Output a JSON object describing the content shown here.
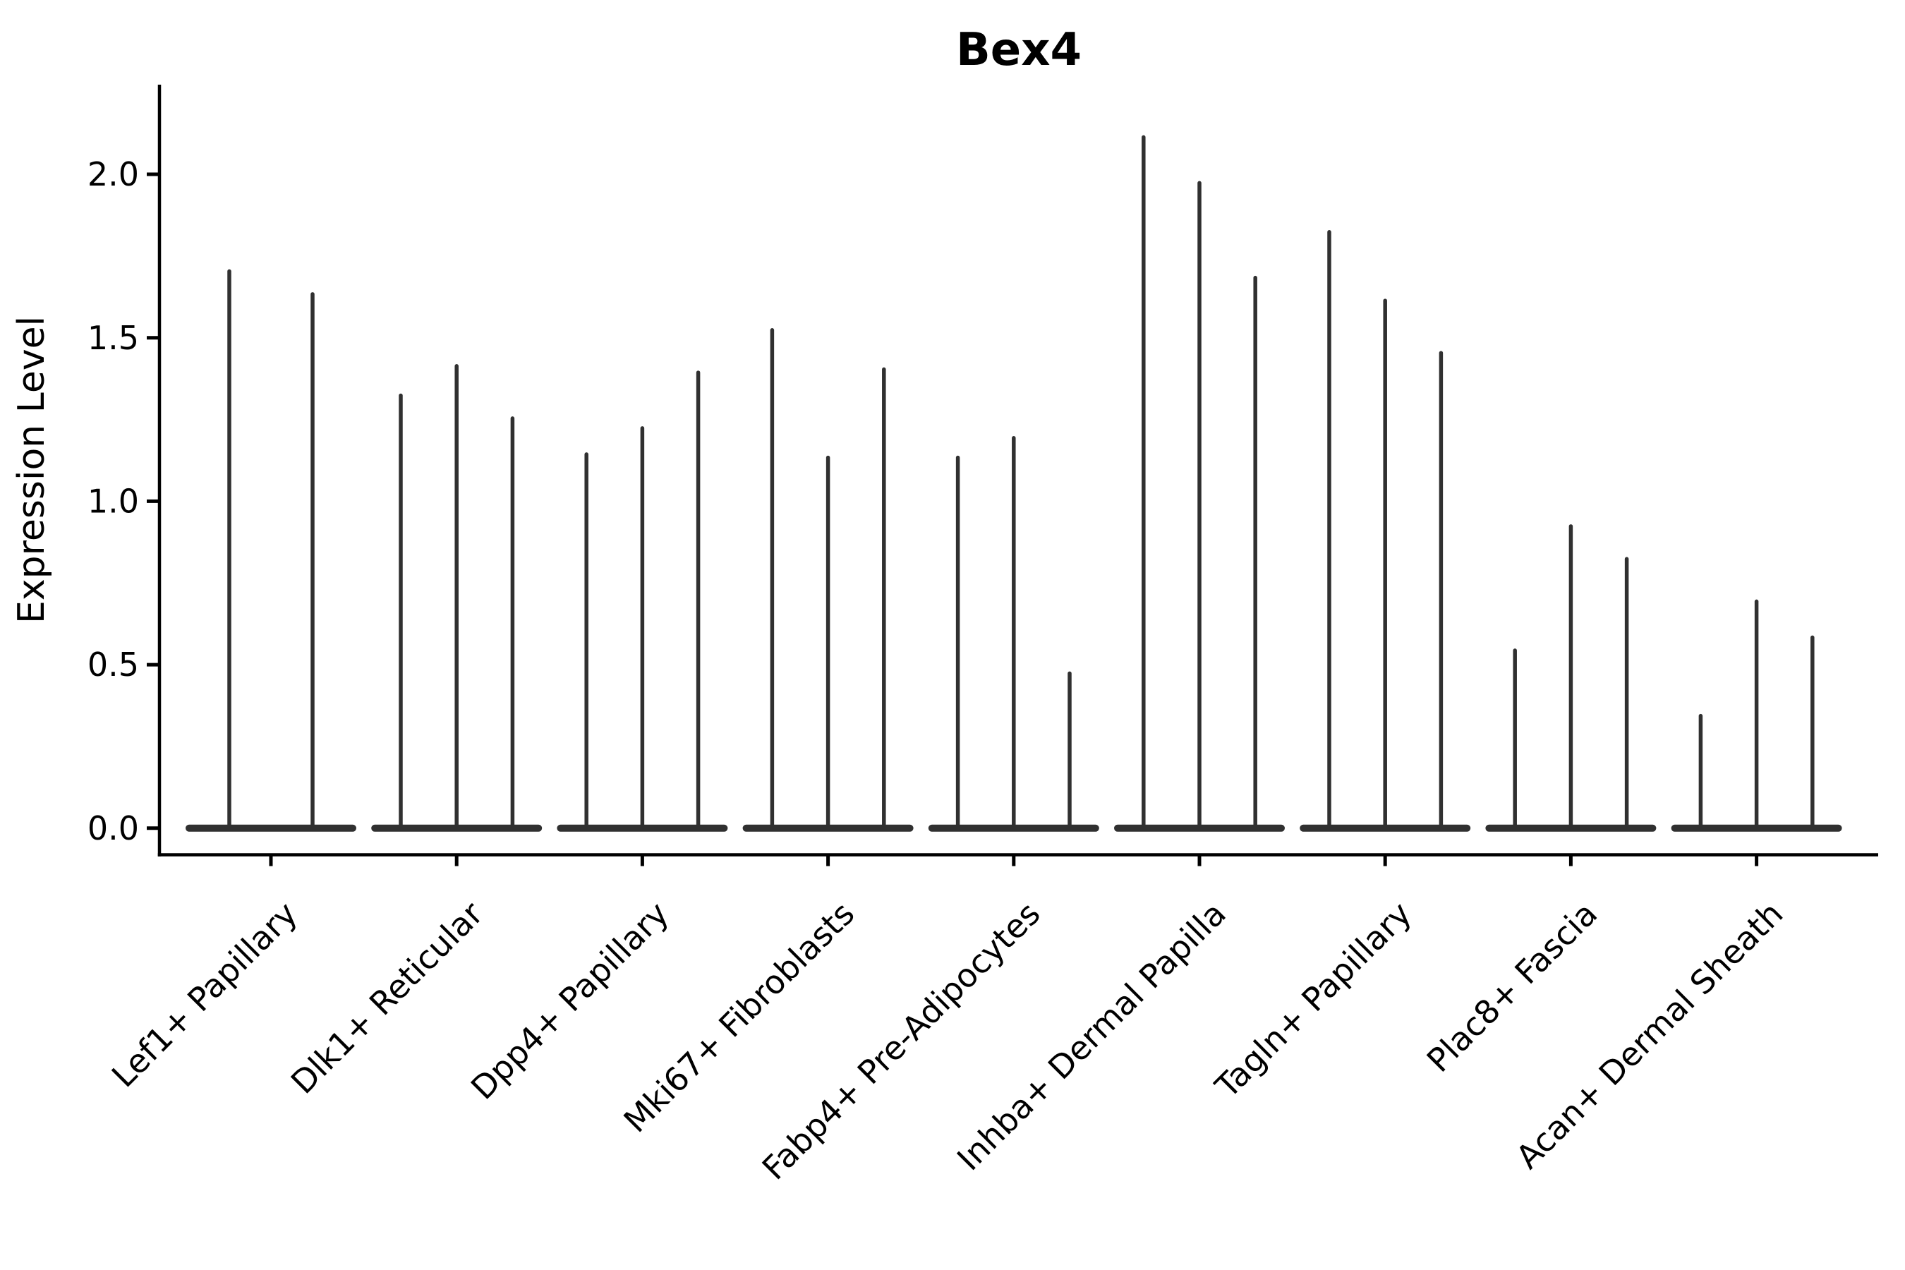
{
  "chart_data": {
    "type": "violin",
    "title": "Bex4",
    "ylabel": "Expression Level",
    "xlabel": "",
    "ylim": [
      -0.08,
      2.27
    ],
    "grid": false,
    "legend": "none",
    "yticks": [
      {
        "value": 0.0,
        "label": "0.0"
      },
      {
        "value": 0.5,
        "label": "0.5"
      },
      {
        "value": 1.0,
        "label": "1.0"
      },
      {
        "value": 1.5,
        "label": "1.5"
      },
      {
        "value": 2.0,
        "label": "2.0"
      }
    ],
    "categories": [
      {
        "label": "Lef1+ Papillary",
        "violin_maxima": [
          1.71,
          1.64
        ]
      },
      {
        "label": "Dlk1+ Reticular",
        "violin_maxima": [
          1.33,
          1.42,
          1.26
        ]
      },
      {
        "label": "Dpp4+ Papillary",
        "violin_maxima": [
          1.15,
          1.23,
          1.4
        ]
      },
      {
        "label": "Mki67+ Fibroblasts",
        "violin_maxima": [
          1.53,
          1.14,
          1.41
        ]
      },
      {
        "label": "Fabp4+ Pre-Adipocytes",
        "violin_maxima": [
          1.14,
          1.2,
          0.48
        ]
      },
      {
        "label": "Inhba+ Dermal Papilla",
        "violin_maxima": [
          2.12,
          1.98,
          1.69
        ]
      },
      {
        "label": "Tagln+ Papillary",
        "violin_maxima": [
          1.83,
          1.62,
          1.46
        ]
      },
      {
        "label": "Plac8+ Fascia",
        "violin_maxima": [
          0.55,
          0.93,
          0.83
        ]
      },
      {
        "label": "Acan+ Dermal Sheath",
        "violin_maxima": [
          0.35,
          0.7,
          0.59
        ]
      }
    ],
    "colors": {
      "violin_stroke": "#303030",
      "axis": "#000000",
      "text": "#000000",
      "background": "#ffffff"
    }
  }
}
